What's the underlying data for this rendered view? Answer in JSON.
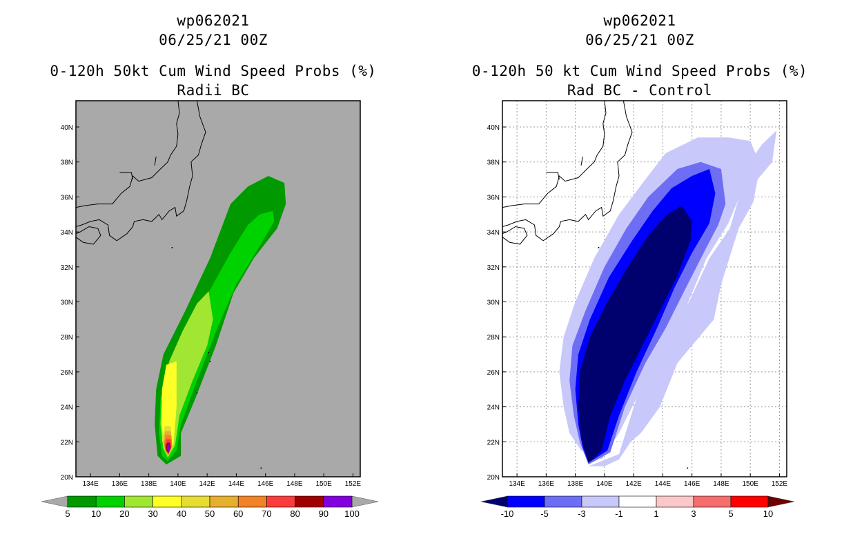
{
  "chart_data": [
    {
      "type": "heatmap",
      "storm_id": "wp062021",
      "datetime": "06/25/21 00Z",
      "title": "0-120h 50kt Cum Wind Speed Probs (%)",
      "subtitle": "Radii BC",
      "xlim": [
        133,
        152.5
      ],
      "ylim": [
        20,
        41.5
      ],
      "x_ticks": [
        "134E",
        "136E",
        "138E",
        "140E",
        "142E",
        "144E",
        "146E",
        "148E",
        "150E",
        "152E"
      ],
      "y_ticks": [
        "20N",
        "22N",
        "24N",
        "26N",
        "28N",
        "30N",
        "32N",
        "34N",
        "36N",
        "38N",
        "40N"
      ],
      "grid": false,
      "background": "#a9a9a9",
      "legend": {
        "placement": "bottom",
        "labels": [
          "5",
          "10",
          "20",
          "30",
          "40",
          "50",
          "60",
          "70",
          "80",
          "90",
          "100"
        ],
        "colors": [
          "#009a00",
          "#00d200",
          "#a0e632",
          "#ffff28",
          "#e6dc32",
          "#e6af2d",
          "#f08228",
          "#fa3c3c",
          "#a00000",
          "#8200dc"
        ],
        "end_colors": [
          "#a9a9a9",
          "#a9a9a9"
        ]
      },
      "contours": [
        {
          "level": 5,
          "color": "#009a00",
          "polygon": [
            [
              139.2,
              20.7
            ],
            [
              140.2,
              21.2
            ],
            [
              140.2,
              22.5
            ],
            [
              141.2,
              24.5
            ],
            [
              142.6,
              27.5
            ],
            [
              143.8,
              30.5
            ],
            [
              145.2,
              32.5
            ],
            [
              146.8,
              34.2
            ],
            [
              147.4,
              35.6
            ],
            [
              147.3,
              36.8
            ],
            [
              146.2,
              37.2
            ],
            [
              144.8,
              36.6
            ],
            [
              143.6,
              35.6
            ],
            [
              142.2,
              32.5
            ],
            [
              140.5,
              29.5
            ],
            [
              139,
              27
            ],
            [
              138.5,
              25
            ],
            [
              138.4,
              23
            ],
            [
              138.6,
              21.2
            ]
          ]
        },
        {
          "level": 10,
          "color": "#00d200",
          "polygon": [
            [
              139.3,
              20.9
            ],
            [
              139.9,
              21.5
            ],
            [
              140.2,
              23
            ],
            [
              141.3,
              25.5
            ],
            [
              142.7,
              28.5
            ],
            [
              144,
              31
            ],
            [
              145.6,
              33.2
            ],
            [
              146.6,
              34.6
            ],
            [
              146.5,
              35.2
            ],
            [
              145.6,
              35
            ],
            [
              144.8,
              34.4
            ],
            [
              143.6,
              32.8
            ],
            [
              142.4,
              31
            ],
            [
              140.9,
              28.6
            ],
            [
              139.5,
              26.3
            ],
            [
              138.8,
              24.5
            ],
            [
              138.7,
              22.5
            ],
            [
              138.9,
              21.2
            ]
          ]
        },
        {
          "level": 20,
          "color": "#a0e632",
          "polygon": [
            [
              139.3,
              21.1
            ],
            [
              139.8,
              21.8
            ],
            [
              140.1,
              23.5
            ],
            [
              141,
              25.5
            ],
            [
              142,
              27.5
            ],
            [
              142.4,
              29
            ],
            [
              142.1,
              30.6
            ],
            [
              141.3,
              29.9
            ],
            [
              140.3,
              28.3
            ],
            [
              139.4,
              26.6
            ],
            [
              138.9,
              25
            ],
            [
              138.8,
              23
            ],
            [
              139,
              21.6
            ]
          ]
        },
        {
          "level": 30,
          "color": "#ffff28",
          "polygon": [
            [
              139.3,
              21.2
            ],
            [
              139.7,
              21.9
            ],
            [
              139.9,
              24
            ],
            [
              139.9,
              26.6
            ],
            [
              139.2,
              26.4
            ],
            [
              138.9,
              25
            ],
            [
              138.9,
              23
            ],
            [
              139,
              21.7
            ]
          ]
        },
        {
          "level": 40,
          "color": "#e6dc32",
          "polygon": [
            [
              139.3,
              21.2
            ],
            [
              139.6,
              21.9
            ],
            [
              139.5,
              22.9
            ],
            [
              139.1,
              22.9
            ],
            [
              138.9,
              22.1
            ],
            [
              139.1,
              21.5
            ]
          ]
        },
        {
          "level": 50,
          "color": "#e6af2d",
          "polygon": [
            [
              139.3,
              21.2
            ],
            [
              139.6,
              21.8
            ],
            [
              139.5,
              22.6
            ],
            [
              139.1,
              22.6
            ],
            [
              139,
              22
            ],
            [
              139.1,
              21.5
            ]
          ]
        },
        {
          "level": 60,
          "color": "#f08228",
          "polygon": [
            [
              139.35,
              21.25
            ],
            [
              139.6,
              21.75
            ],
            [
              139.55,
              22.35
            ],
            [
              139.15,
              22.4
            ],
            [
              139.05,
              21.9
            ],
            [
              139.15,
              21.5
            ]
          ]
        },
        {
          "level": 70,
          "color": "#fa3c3c",
          "polygon": [
            [
              139.35,
              21.3
            ],
            [
              139.55,
              21.7
            ],
            [
              139.5,
              22.15
            ],
            [
              139.2,
              22.15
            ],
            [
              139.1,
              21.8
            ],
            [
              139.2,
              21.5
            ]
          ]
        },
        {
          "level": 80,
          "color": "#a00000",
          "polygon": [
            [
              139.35,
              21.35
            ],
            [
              139.5,
              21.65
            ],
            [
              139.45,
              21.95
            ],
            [
              139.25,
              21.95
            ],
            [
              139.15,
              21.7
            ],
            [
              139.2,
              21.5
            ]
          ]
        },
        {
          "level": 90,
          "color": "#8200dc",
          "polygon": [
            [
              139.35,
              21.4
            ],
            [
              139.45,
              21.6
            ],
            [
              139.42,
              21.85
            ],
            [
              139.28,
              21.85
            ],
            [
              139.22,
              21.65
            ]
          ]
        }
      ]
    },
    {
      "type": "heatmap",
      "storm_id": "wp062021",
      "datetime": "06/25/21 00Z",
      "title": "0-120h 50 kt Cum Wind Speed Probs (%)",
      "subtitle": "Rad BC - Control",
      "xlim": [
        133,
        152.5
      ],
      "ylim": [
        20,
        41.5
      ],
      "x_ticks": [
        "134E",
        "136E",
        "138E",
        "140E",
        "142E",
        "144E",
        "146E",
        "148E",
        "150E",
        "152E"
      ],
      "y_ticks": [
        "20N",
        "22N",
        "24N",
        "26N",
        "28N",
        "30N",
        "32N",
        "34N",
        "36N",
        "38N",
        "40N"
      ],
      "grid": true,
      "background": "#ffffff",
      "legend": {
        "placement": "bottom",
        "labels": [
          "-10",
          "-5",
          "-3",
          "-1",
          "1",
          "3",
          "5",
          "10"
        ],
        "colors": [
          "#0000ff",
          "#6e6ef5",
          "#c8c8fa",
          "#ffffff",
          "#fac8c8",
          "#f56e6e",
          "#ff0000"
        ],
        "end_colors": [
          "#00006e",
          "#6e0000"
        ]
      },
      "contours": [
        {
          "level": -1,
          "color": "#c8c8fa",
          "polygon": [
            [
              138.9,
              20.6
            ],
            [
              141,
              21.3
            ],
            [
              142.2,
              24.5
            ],
            [
              143.9,
              27.5
            ],
            [
              145.8,
              30
            ],
            [
              147.2,
              32.5
            ],
            [
              148.6,
              34.2
            ],
            [
              149.3,
              36.2
            ],
            [
              149.7,
              37.7
            ],
            [
              150.8,
              39
            ],
            [
              151.8,
              39.8
            ],
            [
              151.5,
              38
            ],
            [
              150.5,
              37
            ],
            [
              150.2,
              35.7
            ],
            [
              149.2,
              34.2
            ],
            [
              148,
              31
            ],
            [
              147.5,
              29
            ],
            [
              146.5,
              28
            ],
            [
              145,
              26.5
            ],
            [
              143.8,
              24
            ],
            [
              142.5,
              22.5
            ],
            [
              141.8,
              22
            ],
            [
              141,
              21
            ],
            [
              140,
              20.6
            ]
          ]
        },
        {
          "level": -1,
          "color": "#c8c8fa",
          "polygon": [
            [
              137.2,
              24
            ],
            [
              136.9,
              26
            ],
            [
              137.2,
              28
            ],
            [
              138,
              30
            ],
            [
              139.3,
              32.5
            ],
            [
              141,
              35
            ],
            [
              142.8,
              37
            ],
            [
              144.2,
              38.5
            ],
            [
              146.4,
              39.4
            ],
            [
              148.5,
              39.4
            ],
            [
              150,
              39.2
            ],
            [
              150.6,
              38
            ],
            [
              149.5,
              36.5
            ],
            [
              148.5,
              34.5
            ],
            [
              147,
              32.5
            ],
            [
              145.5,
              29.5
            ],
            [
              144,
              27.5
            ],
            [
              142.5,
              25
            ],
            [
              141,
              22.5
            ],
            [
              139.8,
              21
            ],
            [
              138.4,
              21.5
            ],
            [
              137.6,
              22.5
            ]
          ]
        },
        {
          "level": -3,
          "color": "#6e6ef5",
          "polygon": [
            [
              138.9,
              20.7
            ],
            [
              140.4,
              21.4
            ],
            [
              141.4,
              24
            ],
            [
              142.8,
              26.5
            ],
            [
              144.2,
              28.5
            ],
            [
              145.4,
              30.5
            ],
            [
              146.8,
              32.8
            ],
            [
              147.8,
              34.4
            ],
            [
              148.3,
              35.6
            ],
            [
              148,
              37.6
            ],
            [
              146.6,
              38
            ],
            [
              145,
              37.6
            ],
            [
              143,
              36
            ],
            [
              141.5,
              34.2
            ],
            [
              140,
              32
            ],
            [
              138.7,
              29.5
            ],
            [
              137.8,
              27.5
            ],
            [
              137.6,
              25.5
            ],
            [
              137.9,
              23.5
            ],
            [
              138.3,
              22
            ]
          ]
        },
        {
          "level": -5,
          "color": "#0000ff",
          "polygon": [
            [
              138.9,
              20.8
            ],
            [
              140.2,
              21.5
            ],
            [
              141,
              23.5
            ],
            [
              142.2,
              26
            ],
            [
              143.6,
              28.5
            ],
            [
              144.8,
              30.8
            ],
            [
              146,
              32.8
            ],
            [
              147.2,
              34.5
            ],
            [
              147.6,
              36.2
            ],
            [
              147.2,
              37.6
            ],
            [
              146,
              37.2
            ],
            [
              144.6,
              36.5
            ],
            [
              143.3,
              35.2
            ],
            [
              141.9,
              33.5
            ],
            [
              140.3,
              31.4
            ],
            [
              139,
              29
            ],
            [
              138.2,
              27
            ],
            [
              138,
              25
            ],
            [
              138.2,
              23
            ],
            [
              138.5,
              21.7
            ]
          ]
        },
        {
          "level": -10,
          "color": "#00006e",
          "polygon": [
            [
              138.9,
              20.8
            ],
            [
              139.8,
              21.5
            ],
            [
              140.4,
              23.5
            ],
            [
              141.4,
              25.5
            ],
            [
              142.6,
              27.5
            ],
            [
              143.8,
              29.5
            ],
            [
              145,
              31.5
            ],
            [
              145.9,
              33.5
            ],
            [
              146,
              34.6
            ],
            [
              145.3,
              35.5
            ],
            [
              144.3,
              35
            ],
            [
              143,
              33.8
            ],
            [
              141.6,
              32
            ],
            [
              140.2,
              30
            ],
            [
              139,
              28
            ],
            [
              138.3,
              26
            ],
            [
              138.2,
              24
            ],
            [
              138.4,
              22.2
            ]
          ]
        }
      ]
    }
  ]
}
